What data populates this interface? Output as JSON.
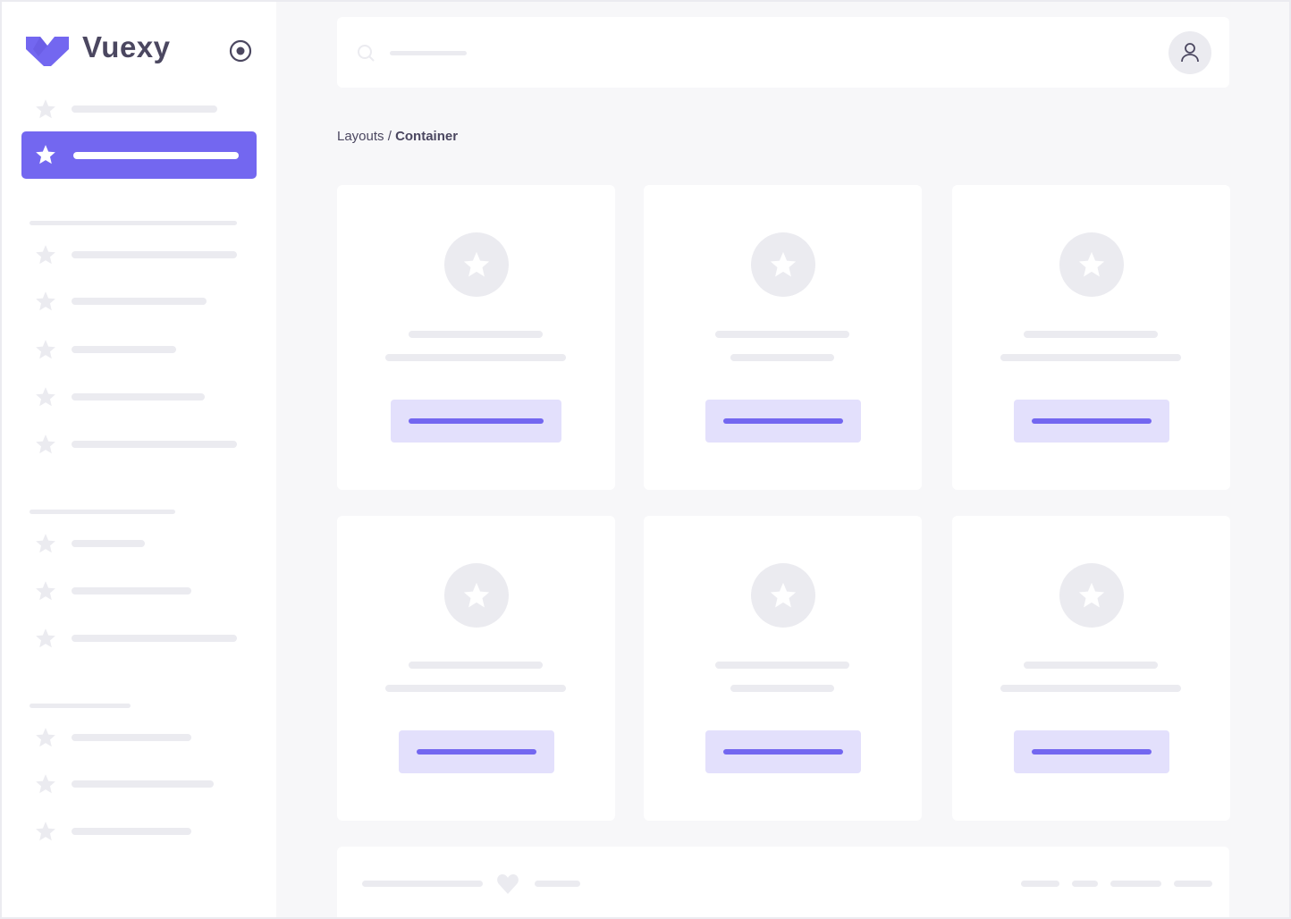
{
  "brand": {
    "name": "Vuexy",
    "logo_color": "#7367f0"
  },
  "breadcrumb": {
    "parent": "Layouts",
    "separator": " / ",
    "current": "Container"
  },
  "colors": {
    "accent": "#7367f0",
    "accent_light": "#e3e0fc",
    "skeleton": "#ebebf0",
    "background": "#f7f7f9",
    "text": "#4b4760"
  },
  "icons": {
    "menu_item": "star-icon",
    "pin": "radio-circle-icon",
    "search": "search-icon",
    "user": "user-icon",
    "footer": "heart-icon"
  }
}
